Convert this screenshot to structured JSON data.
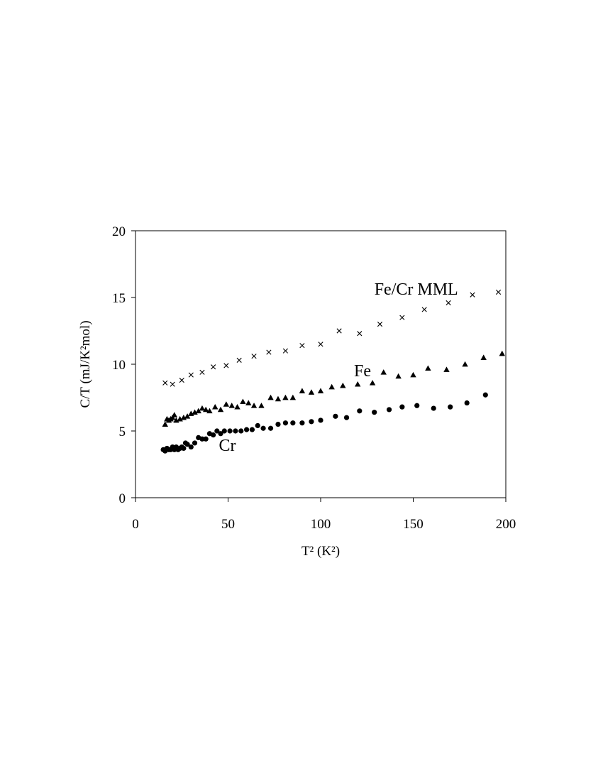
{
  "chart_data": {
    "type": "scatter",
    "xlabel": "T² (K²)",
    "ylabel": "C/T (mJ/K²mol)",
    "xlim": [
      0,
      200
    ],
    "ylim": [
      0,
      20
    ],
    "xticks": [
      0,
      50,
      100,
      150,
      200
    ],
    "yticks": [
      0,
      5,
      10,
      15,
      20
    ],
    "grid": false,
    "legend": "none",
    "series": [
      {
        "name": "Fe/Cr MML",
        "marker": "x",
        "points": [
          [
            16,
            8.6
          ],
          [
            20,
            8.5
          ],
          [
            25,
            8.8
          ],
          [
            30,
            9.2
          ],
          [
            36,
            9.4
          ],
          [
            42,
            9.8
          ],
          [
            49,
            9.9
          ],
          [
            56,
            10.3
          ],
          [
            64,
            10.6
          ],
          [
            72,
            10.9
          ],
          [
            81,
            11.0
          ],
          [
            90,
            11.4
          ],
          [
            100,
            11.5
          ],
          [
            110,
            12.5
          ],
          [
            121,
            12.3
          ],
          [
            132,
            13.0
          ],
          [
            144,
            13.5
          ],
          [
            156,
            14.1
          ],
          [
            169,
            14.6
          ],
          [
            182,
            15.2
          ],
          [
            196,
            15.4
          ]
        ]
      },
      {
        "name": "Fe",
        "marker": "triangle",
        "points": [
          [
            16,
            5.5
          ],
          [
            17,
            5.9
          ],
          [
            18,
            5.8
          ],
          [
            19,
            5.9
          ],
          [
            20,
            6.0
          ],
          [
            21,
            6.2
          ],
          [
            22,
            5.8
          ],
          [
            24,
            5.9
          ],
          [
            26,
            6.0
          ],
          [
            28,
            6.1
          ],
          [
            30,
            6.3
          ],
          [
            32,
            6.4
          ],
          [
            34,
            6.5
          ],
          [
            36,
            6.7
          ],
          [
            38,
            6.6
          ],
          [
            40,
            6.5
          ],
          [
            43,
            6.8
          ],
          [
            46,
            6.6
          ],
          [
            49,
            7.0
          ],
          [
            52,
            6.9
          ],
          [
            55,
            6.8
          ],
          [
            58,
            7.2
          ],
          [
            61,
            7.1
          ],
          [
            64,
            6.9
          ],
          [
            68,
            6.9
          ],
          [
            73,
            7.5
          ],
          [
            77,
            7.4
          ],
          [
            81,
            7.5
          ],
          [
            85,
            7.5
          ],
          [
            90,
            8.0
          ],
          [
            95,
            7.9
          ],
          [
            100,
            8.0
          ],
          [
            106,
            8.3
          ],
          [
            112,
            8.4
          ],
          [
            120,
            8.5
          ],
          [
            128,
            8.6
          ],
          [
            134,
            9.4
          ],
          [
            142,
            9.1
          ],
          [
            150,
            9.2
          ],
          [
            158,
            9.7
          ],
          [
            168,
            9.6
          ],
          [
            178,
            10.0
          ],
          [
            188,
            10.5
          ],
          [
            198,
            10.8
          ]
        ]
      },
      {
        "name": "Cr",
        "marker": "circle",
        "points": [
          [
            15,
            3.6
          ],
          [
            16,
            3.5
          ],
          [
            17,
            3.7
          ],
          [
            18,
            3.6
          ],
          [
            19,
            3.6
          ],
          [
            20,
            3.8
          ],
          [
            21,
            3.6
          ],
          [
            22,
            3.8
          ],
          [
            23,
            3.6
          ],
          [
            24,
            3.7
          ],
          [
            25,
            3.8
          ],
          [
            26,
            3.7
          ],
          [
            27,
            4.1
          ],
          [
            28,
            4.0
          ],
          [
            30,
            3.8
          ],
          [
            32,
            4.1
          ],
          [
            34,
            4.5
          ],
          [
            36,
            4.4
          ],
          [
            38,
            4.4
          ],
          [
            40,
            4.8
          ],
          [
            42,
            4.7
          ],
          [
            44,
            5.0
          ],
          [
            46,
            4.8
          ],
          [
            48,
            5.0
          ],
          [
            51,
            5.0
          ],
          [
            54,
            5.0
          ],
          [
            57,
            5.0
          ],
          [
            60,
            5.1
          ],
          [
            63,
            5.1
          ],
          [
            66,
            5.4
          ],
          [
            69,
            5.2
          ],
          [
            73,
            5.2
          ],
          [
            77,
            5.5
          ],
          [
            81,
            5.6
          ],
          [
            85,
            5.6
          ],
          [
            90,
            5.6
          ],
          [
            95,
            5.7
          ],
          [
            100,
            5.8
          ],
          [
            108,
            6.1
          ],
          [
            114,
            6.0
          ],
          [
            121,
            6.5
          ],
          [
            129,
            6.4
          ],
          [
            137,
            6.6
          ],
          [
            144,
            6.8
          ],
          [
            152,
            6.9
          ],
          [
            161,
            6.7
          ],
          [
            170,
            6.8
          ],
          [
            179,
            7.1
          ],
          [
            189,
            7.7
          ]
        ]
      }
    ]
  }
}
